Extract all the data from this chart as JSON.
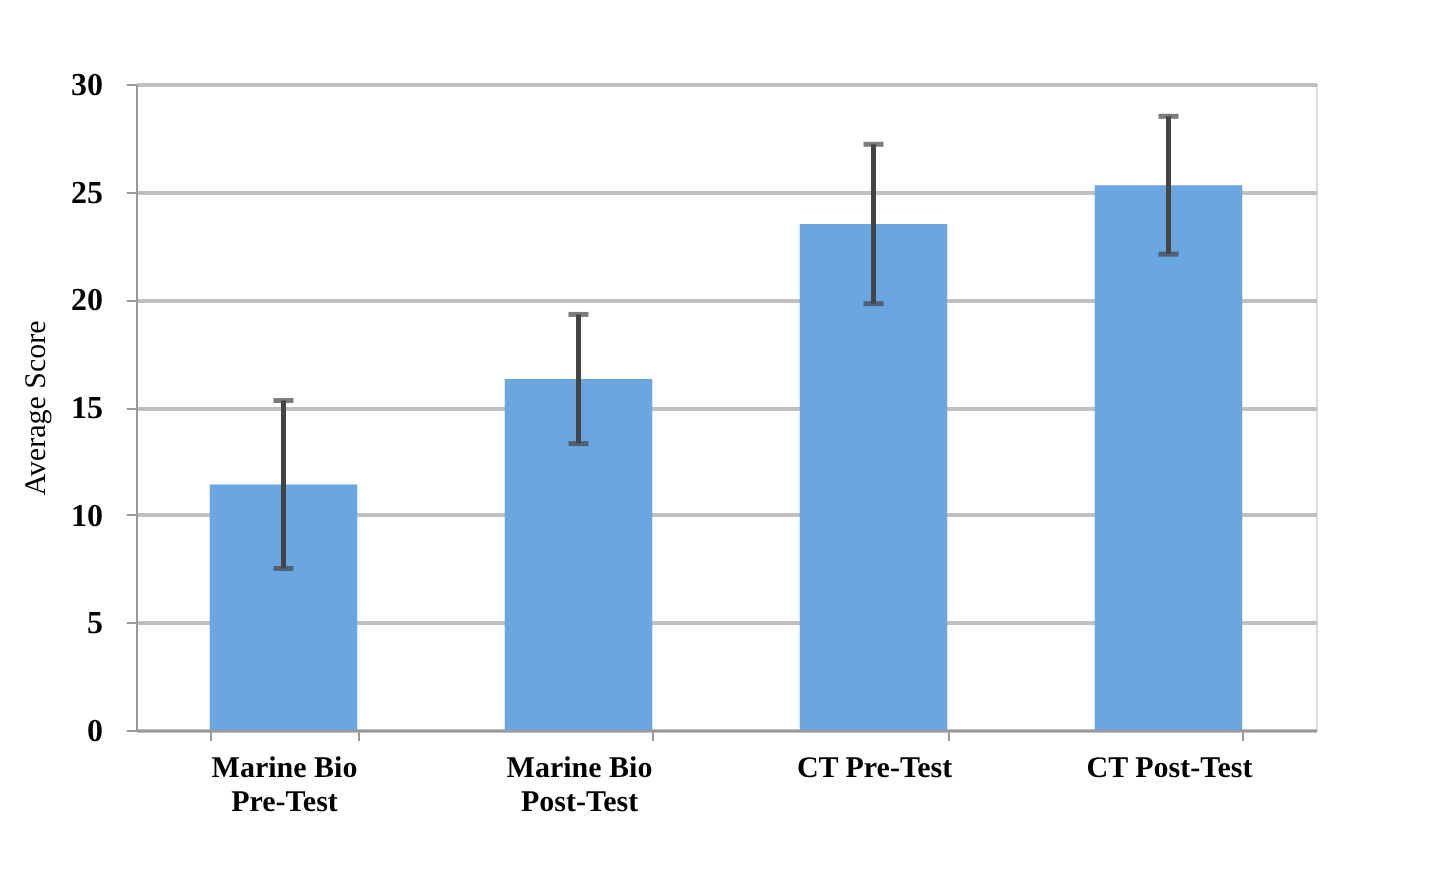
{
  "chart_data": {
    "type": "bar",
    "ylabel": "Average Score",
    "categories": [
      "Marine Bio Pre-Test",
      "Marine Bio Post-Test",
      "CT Pre-Test",
      "CT Post-Test"
    ],
    "values": [
      11.4,
      16.3,
      23.5,
      25.3
    ],
    "errors": [
      3.9,
      3.0,
      3.7,
      3.2
    ],
    "color": "#6aa6e0",
    "ylim": [
      0,
      30
    ],
    "yticks": [
      0,
      5,
      10,
      15,
      20,
      25,
      30
    ],
    "grid": "y"
  }
}
